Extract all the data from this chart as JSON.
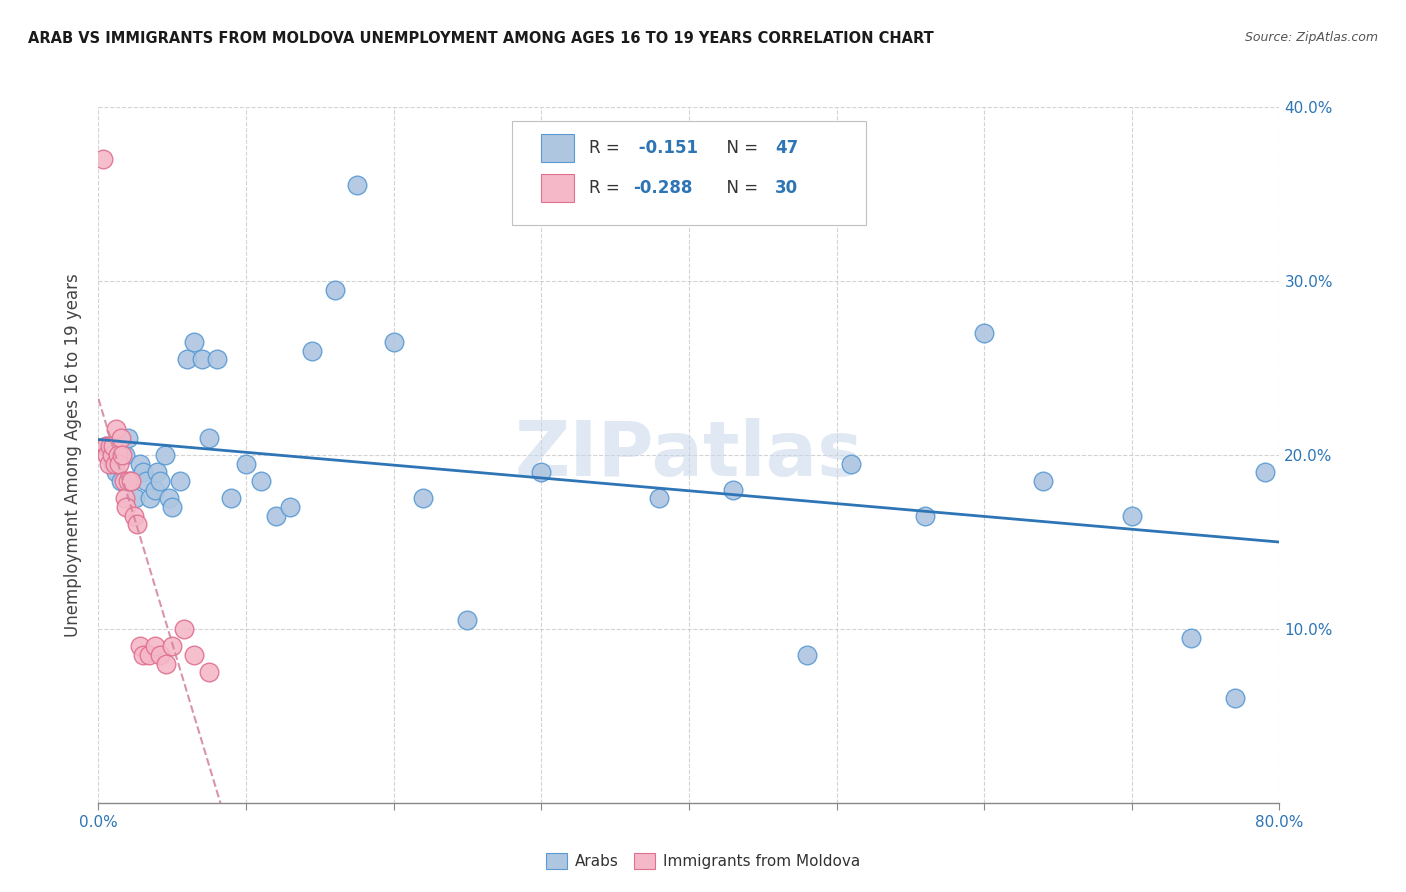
{
  "title": "ARAB VS IMMIGRANTS FROM MOLDOVA UNEMPLOYMENT AMONG AGES 16 TO 19 YEARS CORRELATION CHART",
  "source": "Source: ZipAtlas.com",
  "ylabel": "Unemployment Among Ages 16 to 19 years",
  "xlim": [
    0,
    0.8
  ],
  "ylim": [
    0,
    0.4
  ],
  "xtick_positions": [
    0.0,
    0.1,
    0.2,
    0.3,
    0.4,
    0.5,
    0.6,
    0.7,
    0.8
  ],
  "ytick_positions": [
    0.0,
    0.1,
    0.2,
    0.3,
    0.4
  ],
  "arab_color": "#aec6e0",
  "arab_edge_color": "#5b9bd5",
  "moldova_color": "#f4b8c8",
  "moldova_edge_color": "#e07090",
  "arab_R": -0.151,
  "arab_N": 47,
  "moldova_R": -0.288,
  "moldova_N": 30,
  "arab_line_color": "#2e75b6",
  "moldova_line_color": "#d4829a",
  "watermark": "ZIPatlas",
  "legend_text_color": "#2e75b6",
  "legend_label_color": "#333333",
  "arab_x": [
    0.005,
    0.01,
    0.012,
    0.015,
    0.018,
    0.02,
    0.022,
    0.025,
    0.028,
    0.03,
    0.032,
    0.035,
    0.038,
    0.04,
    0.042,
    0.045,
    0.048,
    0.05,
    0.055,
    0.06,
    0.065,
    0.07,
    0.075,
    0.08,
    0.09,
    0.1,
    0.11,
    0.12,
    0.13,
    0.145,
    0.16,
    0.175,
    0.2,
    0.22,
    0.25,
    0.3,
    0.38,
    0.43,
    0.48,
    0.51,
    0.56,
    0.6,
    0.64,
    0.7,
    0.74,
    0.77,
    0.79
  ],
  "arab_y": [
    0.205,
    0.195,
    0.19,
    0.185,
    0.2,
    0.21,
    0.185,
    0.175,
    0.195,
    0.19,
    0.185,
    0.175,
    0.18,
    0.19,
    0.185,
    0.2,
    0.175,
    0.17,
    0.185,
    0.255,
    0.265,
    0.255,
    0.21,
    0.255,
    0.175,
    0.195,
    0.185,
    0.165,
    0.17,
    0.26,
    0.295,
    0.355,
    0.265,
    0.175,
    0.105,
    0.19,
    0.175,
    0.18,
    0.085,
    0.195,
    0.165,
    0.27,
    0.185,
    0.165,
    0.095,
    0.06,
    0.19
  ],
  "moldova_x": [
    0.003,
    0.005,
    0.006,
    0.007,
    0.008,
    0.009,
    0.01,
    0.011,
    0.012,
    0.013,
    0.014,
    0.015,
    0.016,
    0.017,
    0.018,
    0.019,
    0.02,
    0.022,
    0.024,
    0.026,
    0.028,
    0.03,
    0.034,
    0.038,
    0.042,
    0.046,
    0.05,
    0.058,
    0.065,
    0.075
  ],
  "moldova_y": [
    0.37,
    0.205,
    0.2,
    0.195,
    0.205,
    0.2,
    0.205,
    0.195,
    0.215,
    0.2,
    0.195,
    0.21,
    0.2,
    0.185,
    0.175,
    0.17,
    0.185,
    0.185,
    0.165,
    0.16,
    0.09,
    0.085,
    0.085,
    0.09,
    0.085,
    0.08,
    0.09,
    0.1,
    0.085,
    0.075
  ]
}
